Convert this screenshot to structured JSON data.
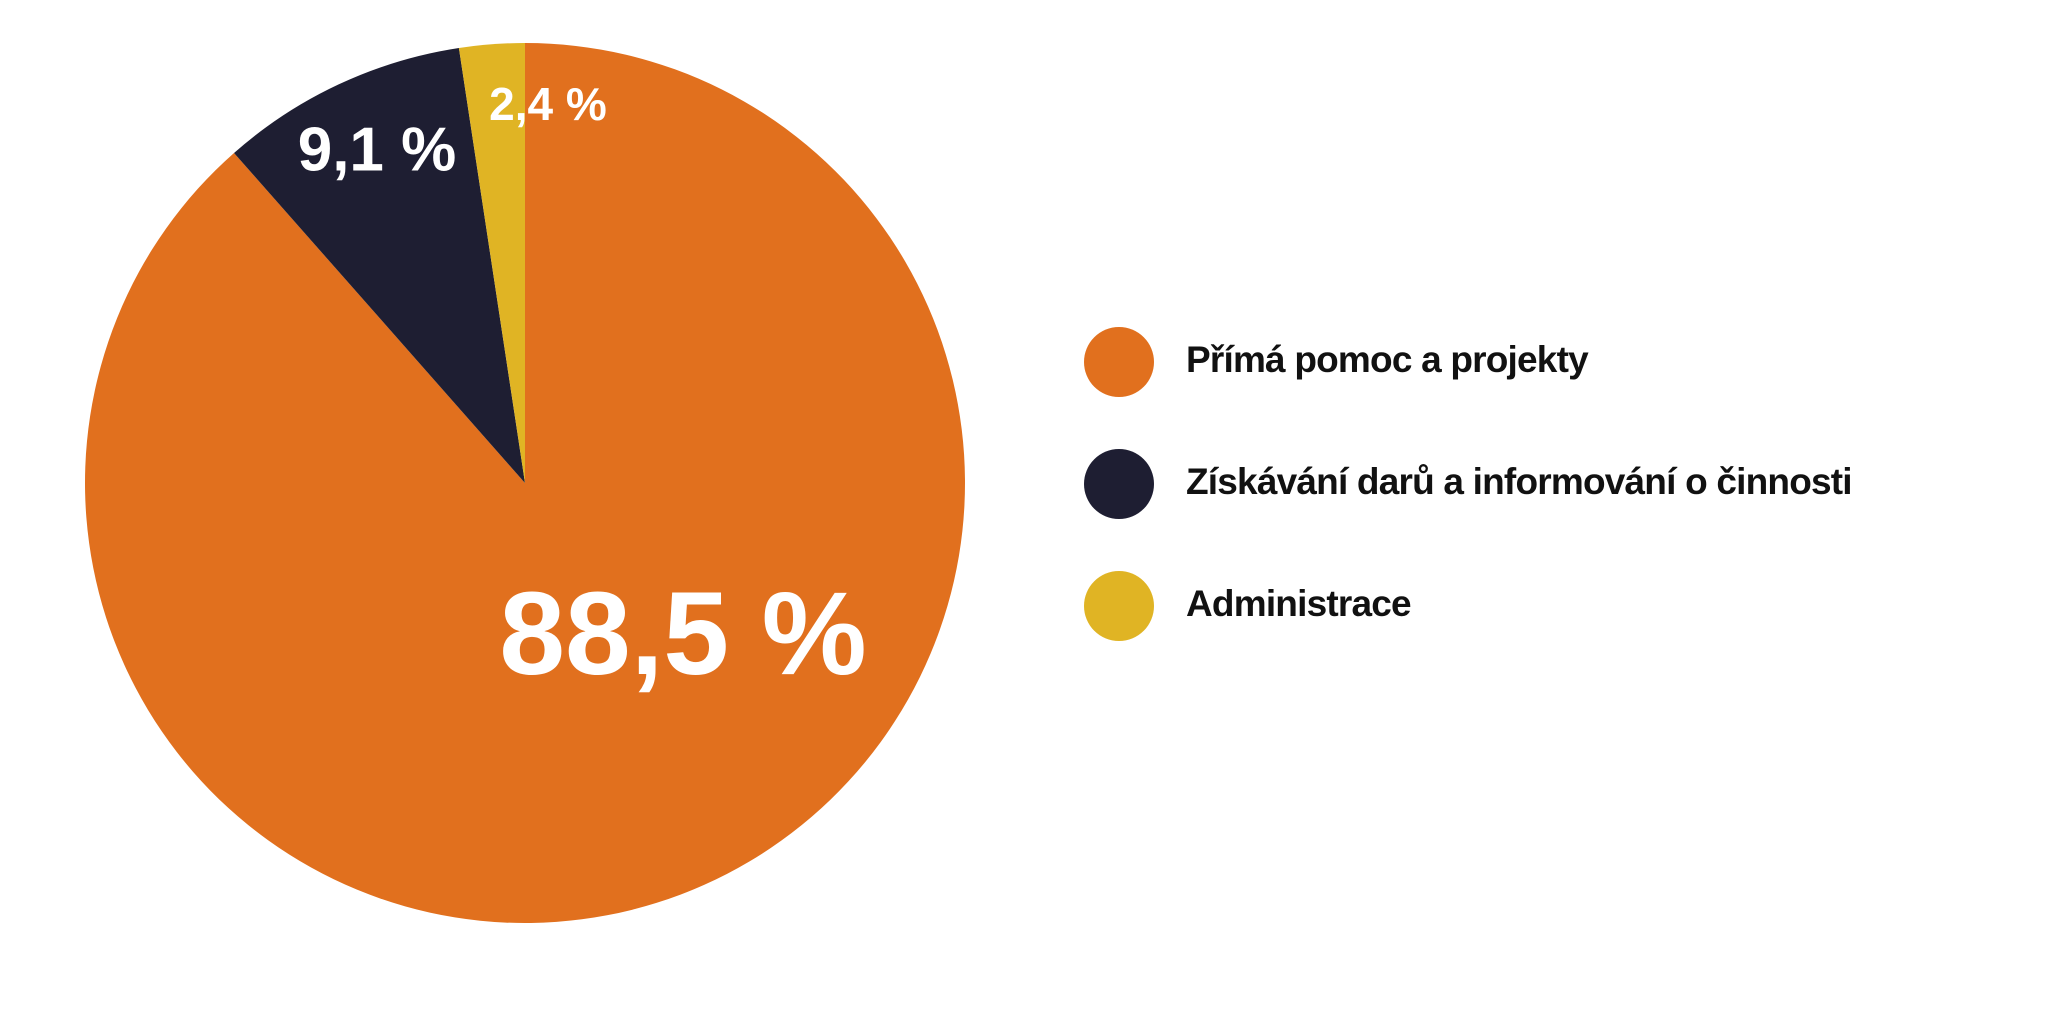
{
  "chart_data": {
    "type": "pie",
    "categories": [
      "Přímá pomoc a projekty",
      "Získávání darů a informování o činnosti",
      "Administrace"
    ],
    "values": [
      88.5,
      9.1,
      2.4
    ],
    "value_labels": [
      "88,5 %",
      "9,1 %",
      "2,4 %"
    ],
    "colors": [
      "#e1701e",
      "#1e1e32",
      "#e0b424"
    ]
  }
}
